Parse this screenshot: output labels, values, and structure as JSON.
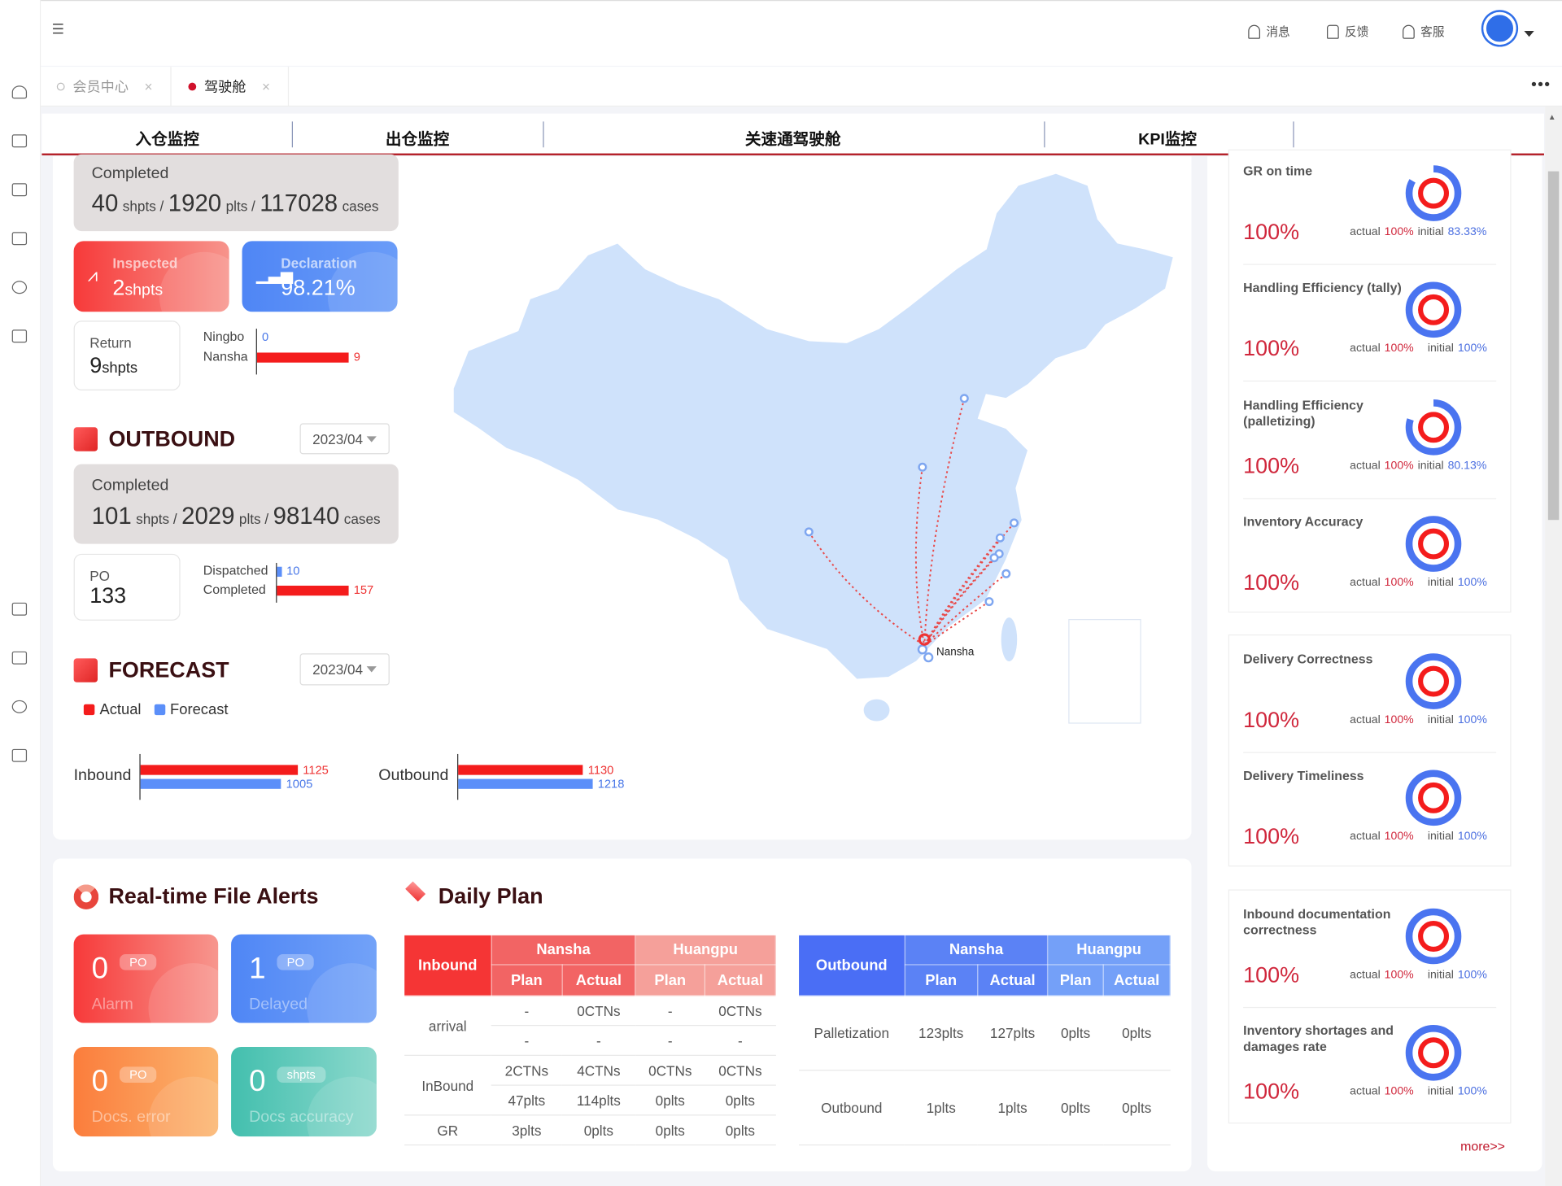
{
  "topbar": {
    "messages": "消息",
    "feedback": "反馈",
    "service": "客服"
  },
  "tabs": [
    {
      "label": "会员中心",
      "active": false
    },
    {
      "label": "驾驶舱",
      "active": true
    }
  ],
  "subnav": [
    "入仓监控",
    "出仓监控",
    "关速通驾驶舱",
    "KPI监控"
  ],
  "inbound": {
    "completed": {
      "label": "Completed",
      "shpts": "40",
      "plts": "1920",
      "cases": "117028",
      "u_shpts": "shpts /",
      "u_plts": "plts /",
      "u_cases": "cases"
    },
    "inspected": {
      "label": "Inspected",
      "value": "2",
      "unit": "shpts"
    },
    "declaration": {
      "label": "Declaration",
      "value": "98.21%"
    },
    "return": {
      "label": "Return",
      "value": "9",
      "unit": "shpts"
    },
    "return_bars": [
      {
        "name": "Ningbo",
        "value": 0,
        "color": "blue"
      },
      {
        "name": "Nansha",
        "value": 9,
        "color": "red"
      }
    ]
  },
  "outbound": {
    "title": "OUTBOUND",
    "month": "2023/04",
    "completed": {
      "label": "Completed",
      "shpts": "101",
      "plts": "2029",
      "cases": "98140",
      "u_shpts": "shpts /",
      "u_plts": "plts /",
      "u_cases": "cases"
    },
    "po": {
      "label": "PO",
      "value": "133"
    },
    "po_bars": [
      {
        "name": "Dispatched",
        "value": 10,
        "color": "blue"
      },
      {
        "name": "Completed",
        "value": 157,
        "color": "red"
      }
    ]
  },
  "forecast": {
    "title": "FORECAST",
    "month": "2023/04",
    "legend": {
      "actual": "Actual",
      "forecast": "Forecast"
    },
    "colors": {
      "actual": "#f41c1c",
      "forecast": "#5b8ff9"
    }
  },
  "chart_data": [
    {
      "type": "bar",
      "orientation": "horizontal",
      "categories": [
        "Inbound"
      ],
      "series": [
        {
          "name": "Actual",
          "values": [
            1125
          ]
        },
        {
          "name": "Forecast",
          "values": [
            1005
          ]
        }
      ]
    },
    {
      "type": "bar",
      "orientation": "horizontal",
      "categories": [
        "Outbound"
      ],
      "series": [
        {
          "name": "Actual",
          "values": [
            1130
          ]
        },
        {
          "name": "Forecast",
          "values": [
            1218
          ]
        }
      ]
    }
  ],
  "map": {
    "label": "Nansha"
  },
  "alerts": {
    "title": "Real-time File Alerts",
    "items": [
      {
        "value": "0",
        "unit": "PO",
        "label": "Alarm"
      },
      {
        "value": "1",
        "unit": "PO",
        "label": "Delayed"
      },
      {
        "value": "0",
        "unit": "PO",
        "label": "Docs. error"
      },
      {
        "value": "0",
        "unit": "shpts",
        "label": "Docs accuracy"
      }
    ]
  },
  "daily_plan": {
    "title": "Daily Plan",
    "inbound": {
      "header": "Inbound",
      "groups": [
        "Nansha",
        "Huangpu"
      ],
      "sub": [
        "Plan",
        "Actual",
        "Plan",
        "Actual"
      ],
      "rows": [
        {
          "label": "arrival",
          "lines": [
            [
              "-",
              "0CTNs",
              "-",
              "0CTNs"
            ],
            [
              "-",
              "-",
              "-",
              "-"
            ]
          ]
        },
        {
          "label": "InBound",
          "lines": [
            [
              "2CTNs",
              "4CTNs",
              "0CTNs",
              "0CTNs"
            ],
            [
              "47plts",
              "114plts",
              "0plts",
              "0plts"
            ]
          ]
        },
        {
          "label": "GR",
          "lines": [
            [
              "3plts",
              "0plts",
              "0plts",
              "0plts"
            ]
          ]
        }
      ]
    },
    "outbound": {
      "header": "Outbound",
      "groups": [
        "Nansha",
        "Huangpu"
      ],
      "sub": [
        "Plan",
        "Actual",
        "Plan",
        "Actual"
      ],
      "rows": [
        {
          "label": "Palletization",
          "cells": [
            "123plts",
            "127plts",
            "0plts",
            "0plts"
          ]
        },
        {
          "label": "Outbound",
          "cells": [
            "1plts",
            "1plts",
            "0plts",
            "0plts"
          ]
        }
      ]
    }
  },
  "kpi": {
    "actual_label": "actual",
    "initial_label": "initial",
    "more": "more>>",
    "items": [
      {
        "title": "GR on time",
        "value": "100%",
        "actual": "100%",
        "initial": "83.33%",
        "actual_pct": 100,
        "initial_pct": 83.33
      },
      {
        "title": "Handling Efficiency (tally)",
        "value": "100%",
        "actual": "100%",
        "initial": "100%",
        "actual_pct": 100,
        "initial_pct": 100
      },
      {
        "title": "Handling Efficiency (palletizing)",
        "value": "100%",
        "actual": "100%",
        "initial": "80.13%",
        "actual_pct": 100,
        "initial_pct": 80.13
      },
      {
        "title": "Inventory Accuracy",
        "value": "100%",
        "actual": "100%",
        "initial": "100%",
        "actual_pct": 100,
        "initial_pct": 100
      },
      {
        "title": "Delivery Correctness",
        "value": "100%",
        "actual": "100%",
        "initial": "100%",
        "actual_pct": 100,
        "initial_pct": 100
      },
      {
        "title": "Delivery Timeliness",
        "value": "100%",
        "actual": "100%",
        "initial": "100%",
        "actual_pct": 100,
        "initial_pct": 100
      },
      {
        "title": "Inbound documentation correctness",
        "value": "100%",
        "actual": "100%",
        "initial": "100%",
        "actual_pct": 100,
        "initial_pct": 100
      },
      {
        "title": "Inventory shortages and damages rate",
        "value": "100%",
        "actual": "100%",
        "initial": "100%",
        "actual_pct": 100,
        "initial_pct": 100
      }
    ],
    "colors": {
      "actual": "#f41c1c",
      "initial": "#4a74f0"
    }
  }
}
